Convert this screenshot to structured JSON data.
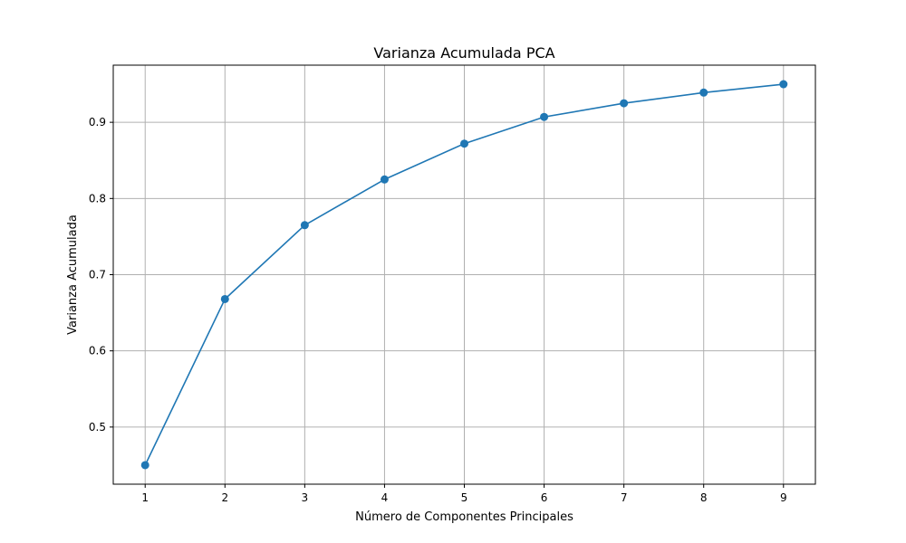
{
  "chart_data": {
    "type": "line",
    "title": "Varianza Acumulada PCA",
    "xlabel": "Número de Componentes Principales",
    "ylabel": "Varianza Acumulada",
    "x": [
      1,
      2,
      3,
      4,
      5,
      6,
      7,
      8,
      9
    ],
    "series": [
      {
        "values": [
          0.45,
          0.668,
          0.765,
          0.825,
          0.872,
          0.907,
          0.925,
          0.939,
          0.95
        ]
      }
    ],
    "xlim": [
      0.6,
      9.4
    ],
    "ylim": [
      0.425,
      0.975
    ],
    "xticks": [
      1,
      2,
      3,
      4,
      5,
      6,
      7,
      8,
      9
    ],
    "yticks": [
      0.5,
      0.6,
      0.7,
      0.8,
      0.9
    ],
    "ytick_labels": [
      "0.5",
      "0.6",
      "0.7",
      "0.8",
      "0.9"
    ],
    "grid": true,
    "marker": "circle",
    "line_color": "#1f77b4"
  }
}
